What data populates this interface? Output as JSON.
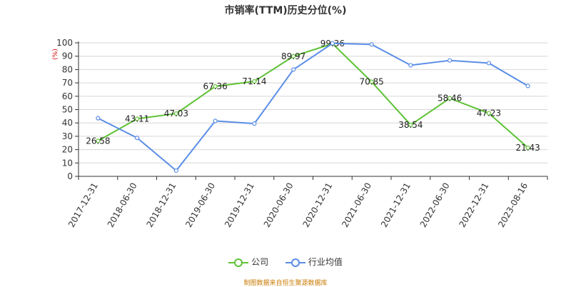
{
  "chart_data": {
    "type": "line",
    "title": "市销率(TTM)历史分位(%)",
    "ylabel": "(%)",
    "xlabel": "",
    "ylim": [
      0,
      100
    ],
    "yticks": [
      0,
      10,
      20,
      30,
      40,
      50,
      60,
      70,
      80,
      90,
      100
    ],
    "categories": [
      "2017-12-31",
      "2018-06-30",
      "2018-12-31",
      "2019-06-30",
      "2019-12-31",
      "2020-06-30",
      "2020-12-31",
      "2021-06-30",
      "2021-12-31",
      "2022-06-30",
      "2022-12-31",
      "2023-08-16"
    ],
    "series": [
      {
        "name": "公司",
        "color": "#5ec235",
        "show_labels": true,
        "values": [
          26.58,
          43.11,
          47.03,
          67.36,
          71.14,
          89.97,
          99.36,
          70.85,
          38.54,
          58.46,
          47.23,
          21.43
        ]
      },
      {
        "name": "行业均值",
        "color": "#5b8ee6",
        "show_labels": false,
        "values": [
          43.5,
          28.8,
          4.3,
          41.5,
          39.5,
          80.0,
          99.6,
          98.8,
          83.2,
          86.8,
          84.8,
          67.7
        ]
      }
    ],
    "grid": true,
    "legend_position": "bottom"
  },
  "source_text": "制图数据来自恒生聚源数据库"
}
